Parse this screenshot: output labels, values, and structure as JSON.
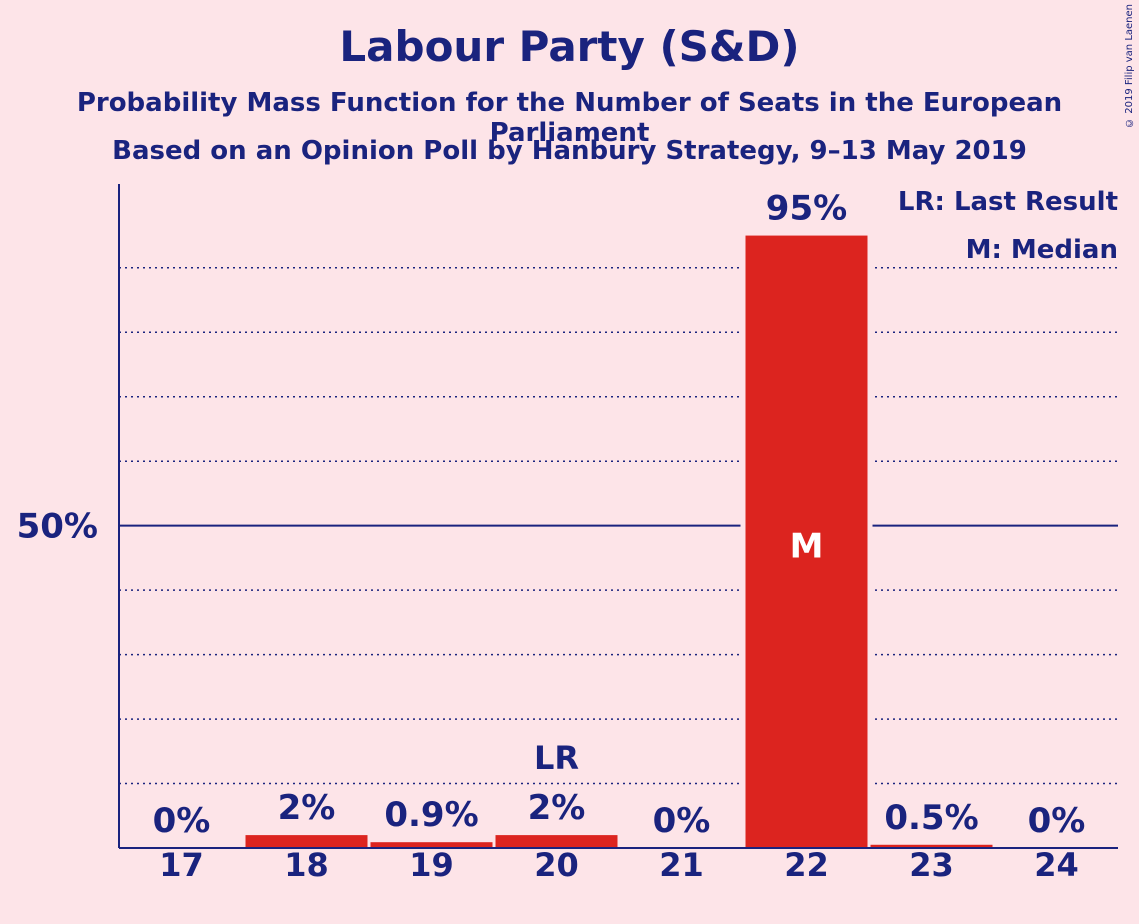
{
  "chart_data": {
    "type": "bar",
    "title": "Labour Party (S&D)",
    "subtitle": "Probability Mass Function for the Number of Seats in the European Parliament",
    "subtitle2": "Based on an Opinion Poll by Hanbury Strategy, 9–13 May 2019",
    "categories": [
      "17",
      "18",
      "19",
      "20",
      "21",
      "22",
      "23",
      "24"
    ],
    "values": [
      0,
      2,
      0.9,
      2,
      0,
      95,
      0.5,
      0
    ],
    "value_labels": [
      "0%",
      "2%",
      "0.9%",
      "2%",
      "0%",
      "95%",
      "0.5%",
      "0%"
    ],
    "ylim": [
      0,
      103
    ],
    "ytick_label": "50%",
    "ytick_value": 50,
    "grid": true,
    "last_result_category": "20",
    "last_result_marker": "LR",
    "median_category": "22",
    "median_marker": "M",
    "legend": [
      "LR: Last Result",
      "M: Median"
    ],
    "legend_position": "top-right",
    "bar_color": "#dc241f",
    "axis_color": "#1a237e"
  },
  "copyright": "© 2019 Filip van Laenen"
}
